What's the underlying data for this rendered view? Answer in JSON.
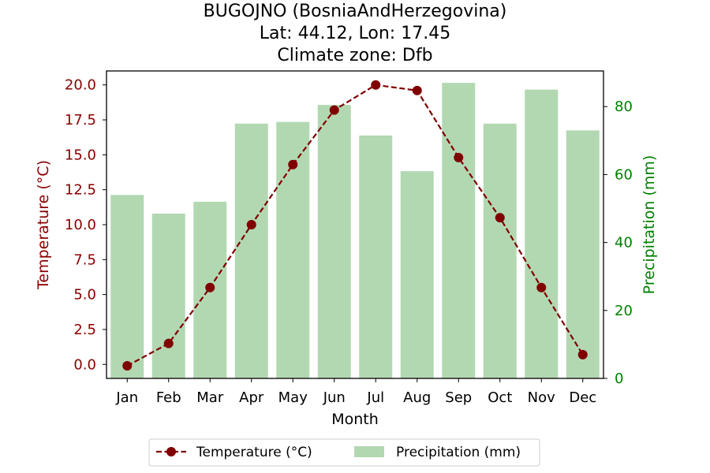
{
  "chart_data": {
    "type": "bar+line",
    "title_lines": [
      "BUGOJNO (BosniaAndHerzegovina)",
      "Lat: 44.12, Lon: 17.45",
      "Climate zone: Dfb"
    ],
    "xlabel": "Month",
    "categories": [
      "Jan",
      "Feb",
      "Mar",
      "Apr",
      "May",
      "Jun",
      "Jul",
      "Aug",
      "Sep",
      "Oct",
      "Nov",
      "Dec"
    ],
    "series": [
      {
        "name": "Temperature (°C)",
        "type": "line",
        "axis": "left",
        "color": "#800000",
        "values": [
          -0.1,
          1.5,
          5.5,
          10.0,
          14.3,
          18.2,
          20.0,
          19.6,
          14.8,
          10.5,
          5.5,
          0.7
        ]
      },
      {
        "name": "Precipitation (mm)",
        "type": "bar",
        "axis": "right",
        "color": "#b2d8b2",
        "values": [
          54,
          48.5,
          52,
          75,
          75.5,
          80.5,
          71.5,
          61,
          87,
          75,
          85,
          73
        ]
      }
    ],
    "y_left": {
      "label": "Temperature (°C)",
      "color": "#8b0000",
      "range": [
        -1.0,
        21.0
      ],
      "ticks": [
        0.0,
        2.5,
        5.0,
        7.5,
        10.0,
        12.5,
        15.0,
        17.5,
        20.0
      ],
      "tick_labels": [
        "0.0",
        "2.5",
        "5.0",
        "7.5",
        "10.0",
        "12.5",
        "15.0",
        "17.5",
        "20.0"
      ]
    },
    "y_right": {
      "label": "Precipitation (mm)",
      "color": "#008000",
      "range": [
        0,
        90.5
      ],
      "ticks": [
        0,
        20,
        40,
        60,
        80
      ],
      "tick_labels": [
        "0",
        "20",
        "40",
        "60",
        "80"
      ]
    },
    "legend": {
      "placement": "bottom-center",
      "entries": [
        "Temperature (°C)",
        "Precipitation (mm)"
      ]
    },
    "grid": false
  }
}
